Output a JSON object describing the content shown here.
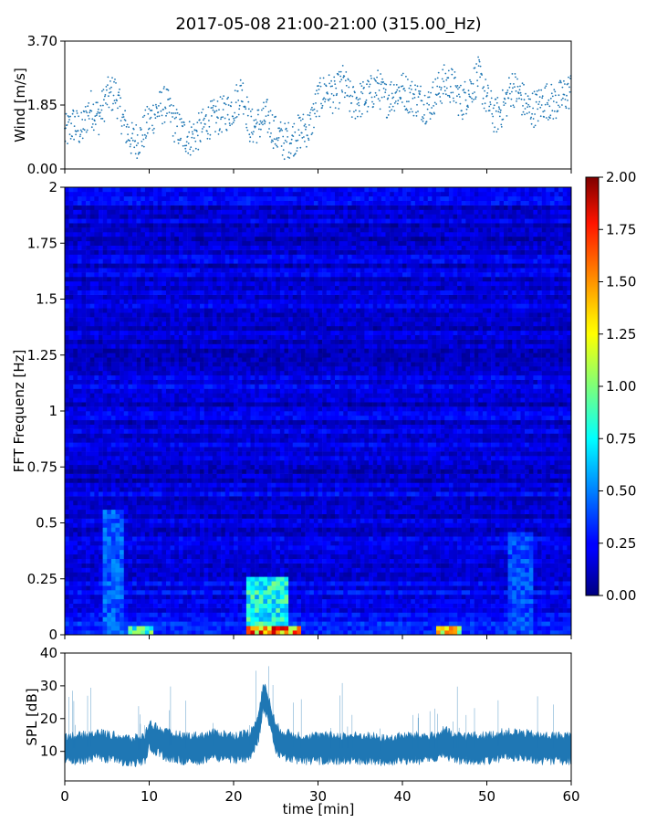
{
  "figure": {
    "title": "2017-05-08 21:00-21:00 (315.00_Hz)"
  },
  "chart_data": [
    {
      "id": "wind",
      "type": "scatter",
      "ylabel": "Wind [m/s]",
      "xlim": [
        0,
        60
      ],
      "ylim": [
        0,
        3.7
      ],
      "yticks": [
        0,
        1.85,
        3.7
      ],
      "ytick_labels": [
        "0.00",
        "1.85",
        "3.70"
      ],
      "series": [
        {
          "x": [
            0,
            1,
            2,
            3,
            4,
            5,
            6,
            7,
            8,
            9,
            10,
            11,
            12,
            13,
            14,
            15,
            16,
            17,
            18,
            19,
            20,
            21,
            22,
            23,
            24,
            25,
            26,
            27,
            28,
            29,
            30,
            31,
            32,
            33,
            34,
            35,
            36,
            37,
            38,
            39,
            40,
            41,
            42,
            43,
            44,
            45,
            46,
            47,
            48,
            49,
            50,
            51,
            52,
            53,
            54,
            55,
            56,
            57,
            58,
            59,
            60
          ],
          "y": [
            1.0,
            1.3,
            1.1,
            1.8,
            1.5,
            2.1,
            2.2,
            1.3,
            0.8,
            0.9,
            1.4,
            1.7,
            1.9,
            1.3,
            1.0,
            0.9,
            1.1,
            1.4,
            1.5,
            1.6,
            1.8,
            2.3,
            1.2,
            1.3,
            1.5,
            1.0,
            0.8,
            0.9,
            1.1,
            1.2,
            2.0,
            2.3,
            2.1,
            2.5,
            1.9,
            2.0,
            2.1,
            2.4,
            2.0,
            2.2,
            2.3,
            2.1,
            2.0,
            1.8,
            2.2,
            2.5,
            2.4,
            1.9,
            2.3,
            2.7,
            2.0,
            1.5,
            1.8,
            2.4,
            2.1,
            1.7,
            1.8,
            2.0,
            1.9,
            2.1,
            2.3
          ]
        }
      ]
    },
    {
      "id": "spectrogram",
      "type": "heatmap",
      "ylabel": "FFT Frequenz [Hz]",
      "xlim": [
        0,
        60
      ],
      "ylim": [
        0,
        2
      ],
      "yticks": [
        0,
        0.25,
        0.5,
        0.75,
        1,
        1.25,
        1.5,
        1.75,
        2
      ],
      "ytick_labels": [
        "0",
        "0.25",
        "0.5",
        "0.75",
        "1",
        "1.25",
        "1.5",
        "1.75",
        "2"
      ],
      "colorbar": {
        "colormap": "jet",
        "range": [
          0,
          2
        ],
        "ticks": [
          0,
          0.25,
          0.5,
          0.75,
          1,
          1.25,
          1.5,
          1.75,
          2
        ],
        "tick_labels": [
          "0.00",
          "0.25",
          "0.50",
          "0.75",
          "1.00",
          "1.25",
          "1.50",
          "1.75",
          "2.00"
        ]
      },
      "hotspots": [
        {
          "t_min": 21.5,
          "t_max": 26.5,
          "f_max": 0.25,
          "level": 1.0
        },
        {
          "t_min": 4.5,
          "t_max": 7,
          "f_max": 0.55,
          "level": 0.55
        },
        {
          "t_min": 52.5,
          "t_max": 55.5,
          "f_max": 0.45,
          "level": 0.5
        },
        {
          "t_min": 7.5,
          "t_max": 10.5,
          "f_max": 0.04,
          "level": 1.1
        },
        {
          "t_min": 21.5,
          "t_max": 28,
          "f_max": 0.03,
          "level": 1.9
        },
        {
          "t_min": 44,
          "t_max": 47,
          "f_max": 0.03,
          "level": 1.6
        }
      ]
    },
    {
      "id": "spl",
      "type": "area",
      "ylabel": "SPL [dB]",
      "xlabel": "time [min]",
      "xlim": [
        0,
        60
      ],
      "ylim": [
        1,
        40
      ],
      "yticks": [
        10,
        20,
        30,
        40
      ],
      "xticks": [
        0,
        10,
        20,
        30,
        40,
        50,
        60
      ],
      "series": [
        {
          "x": [
            0,
            2,
            4,
            6,
            8,
            9.5,
            10,
            12,
            14,
            16,
            18,
            20,
            22,
            23,
            23.5,
            24,
            25,
            26,
            28,
            30,
            32,
            34,
            36,
            38,
            40,
            42,
            44,
            45,
            46,
            48,
            50,
            52,
            54,
            56,
            58,
            60
          ],
          "y": [
            11,
            11,
            12,
            11,
            10,
            11,
            15,
            12,
            11,
            11,
            12,
            11,
            12,
            18,
            27,
            24,
            14,
            12,
            11,
            11,
            11,
            11,
            11,
            10,
            11,
            11,
            11,
            13,
            11,
            11,
            11,
            12,
            12,
            11,
            11,
            11
          ],
          "spread": 4
        }
      ]
    }
  ]
}
